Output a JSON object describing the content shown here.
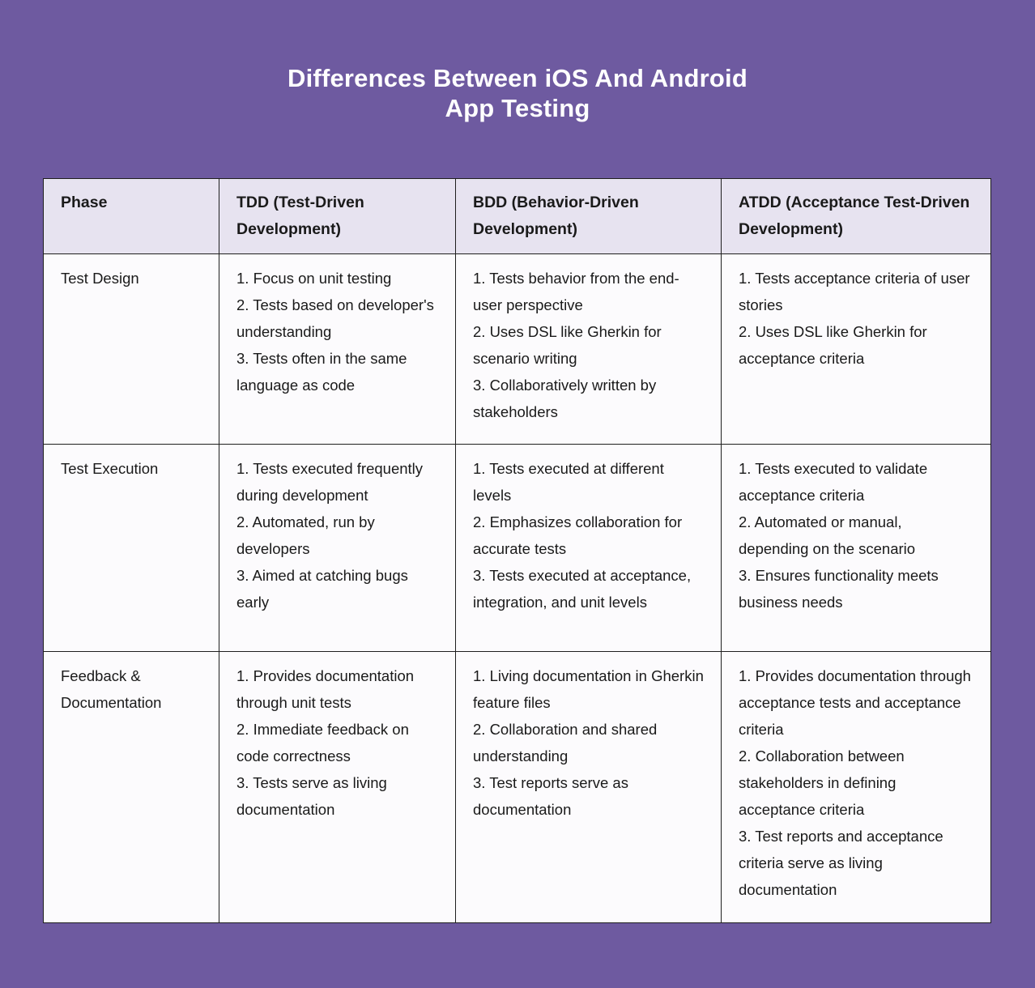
{
  "title": {
    "line1": "Differences Between iOS And Android",
    "line2": "App Testing"
  },
  "table": {
    "columns": [
      "Phase",
      "TDD (Test-Driven Development)",
      "BDD (Behavior-Driven Development)",
      "ATDD (Acceptance Test-Driven Development)"
    ],
    "rows": [
      {
        "phase": "Test Design",
        "tdd": [
          "1. Focus on unit testing",
          "2. Tests based on developer's understanding",
          "3. Tests often in the same language as code"
        ],
        "bdd": [
          "1. Tests behavior from the end-user perspective",
          "2. Uses DSL like Gherkin for scenario writing",
          "3. Collaboratively written by stakeholders"
        ],
        "atdd": [
          "1. Tests acceptance criteria of user stories",
          "2. Uses DSL like Gherkin for acceptance criteria"
        ]
      },
      {
        "phase": "Test Execution",
        "tdd": [
          "1. Tests executed frequently during development",
          "2. Automated, run by developers",
          "3. Aimed at catching bugs early"
        ],
        "bdd": [
          "1. Tests executed at different levels",
          "2. Emphasizes collaboration for accurate tests",
          "3. Tests executed at acceptance, integration, and unit levels"
        ],
        "atdd": [
          "1. Tests executed to validate acceptance criteria",
          "2. Automated or manual, depending on the scenario",
          "3. Ensures functionality meets business needs"
        ]
      },
      {
        "phase": "Feedback & Documentation",
        "tdd": [
          "1. Provides documentation through unit tests",
          "2. Immediate feedback on code correctness",
          "3. Tests serve as living documentation"
        ],
        "bdd": [
          "1. Living documentation in Gherkin feature files",
          "2. Collaboration and shared understanding",
          "3. Test reports serve as documentation"
        ],
        "atdd": [
          "1. Provides documentation through acceptance tests and acceptance criteria",
          "2. Collaboration between stakeholders in defining acceptance criteria",
          "3. Test reports and acceptance criteria serve as living documentation"
        ]
      }
    ]
  },
  "colors": {
    "background": "#6e5aa0",
    "header_bg": "#e7e3f0",
    "cell_bg": "#fcfbfd",
    "border": "#1f1f1f",
    "text": "#1a1a1a",
    "title_text": "#ffffff"
  }
}
